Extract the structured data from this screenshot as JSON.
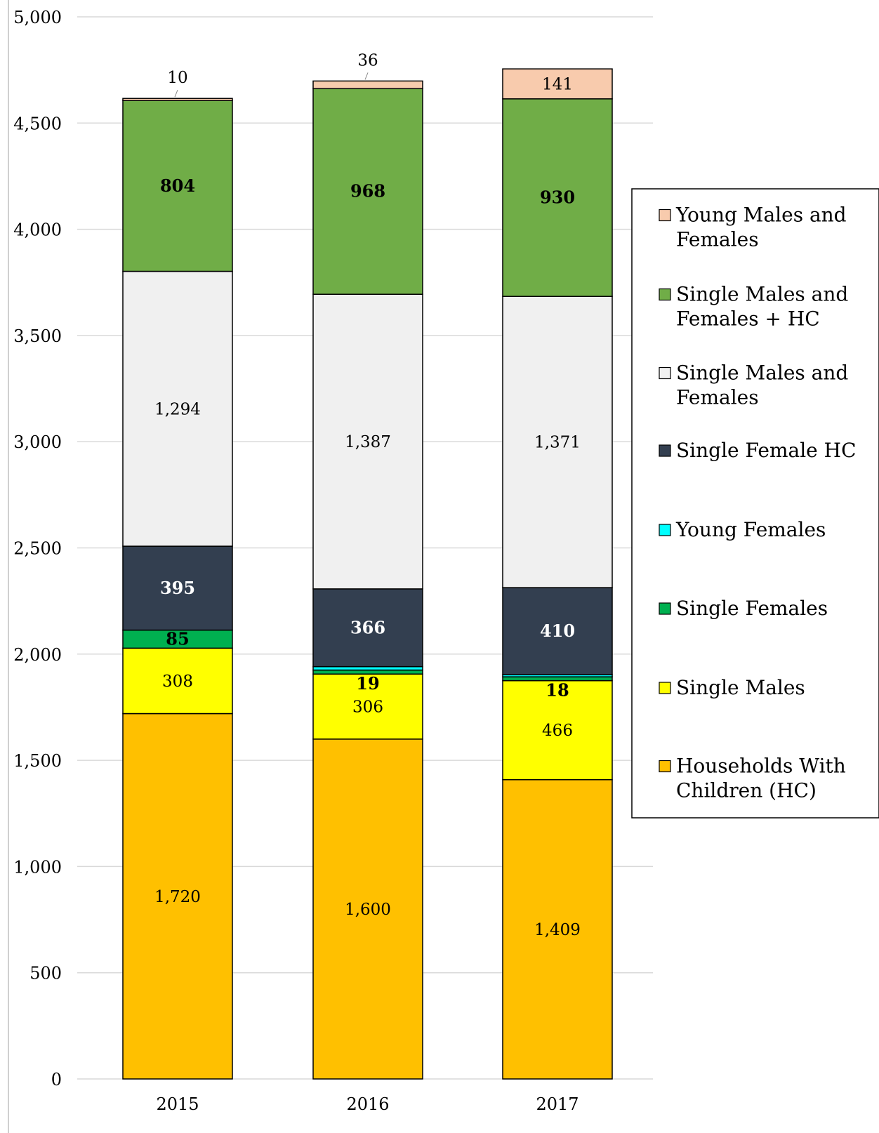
{
  "chart_data": {
    "type": "bar",
    "stacked": true,
    "categories": [
      "2015",
      "2016",
      "2017"
    ],
    "ylim": [
      0,
      5000
    ],
    "yticks": [
      0,
      500,
      1000,
      1500,
      2000,
      2500,
      3000,
      3500,
      4000,
      4500,
      5000
    ],
    "ytick_labels": [
      "0",
      "500",
      "1,000",
      "1,500",
      "2,000",
      "2,500",
      "3,000",
      "3,500",
      "4,000",
      "4,500",
      "5,000"
    ],
    "grid": true,
    "legend_position": "right",
    "series": [
      {
        "name": "Households With Children (HC)",
        "color": "#FFC000",
        "values": [
          1720,
          1600,
          1409
        ],
        "labels": [
          "1,720",
          "1,600",
          "1,409"
        ]
      },
      {
        "name": "Single Males",
        "color": "#FFFF00",
        "values": [
          308,
          306,
          466
        ],
        "labels": [
          "308",
          "306",
          "466"
        ]
      },
      {
        "name": "Single Females",
        "color": "#00B050",
        "values": [
          85,
          19,
          18
        ],
        "labels": [
          "85",
          "19",
          "18"
        ]
      },
      {
        "name": "Young Females",
        "color": "#00FFFF",
        "values": [
          0,
          16,
          10
        ],
        "labels": [
          "",
          "",
          ""
        ]
      },
      {
        "name": "Single Female HC",
        "color": "#333F50",
        "values": [
          395,
          366,
          410
        ],
        "labels": [
          "395",
          "366",
          "410"
        ]
      },
      {
        "name": "Single Males and Females",
        "color": "#F0F0F0",
        "values": [
          1294,
          1387,
          1371
        ],
        "labels": [
          "1,294",
          "1,387",
          "1,371"
        ]
      },
      {
        "name": "Single Males and Females + HC",
        "color": "#70AD47",
        "values": [
          804,
          968,
          930
        ],
        "labels": [
          "804",
          "968",
          "930"
        ]
      },
      {
        "name": "Young Males and Females",
        "color": "#F8CBAD",
        "values": [
          10,
          36,
          141
        ],
        "labels": [
          "10",
          "36",
          "141"
        ]
      }
    ],
    "legend": [
      {
        "lines": [
          "Young Males and",
          "Females"
        ],
        "color": "#F8CBAD"
      },
      {
        "lines": [
          "Single Males and",
          "Females + HC"
        ],
        "color": "#70AD47"
      },
      {
        "lines": [
          "Single Males and",
          "Females"
        ],
        "color": "#F0F0F0"
      },
      {
        "lines": [
          "Single Female HC"
        ],
        "color": "#333F50"
      },
      {
        "lines": [
          "Young Females"
        ],
        "color": "#00FFFF"
      },
      {
        "lines": [
          "Single Females"
        ],
        "color": "#00B050"
      },
      {
        "lines": [
          "Single Males"
        ],
        "color": "#FFFF00"
      },
      {
        "lines": [
          "Households With",
          "Children (HC)"
        ],
        "color": "#FFC000"
      }
    ]
  }
}
